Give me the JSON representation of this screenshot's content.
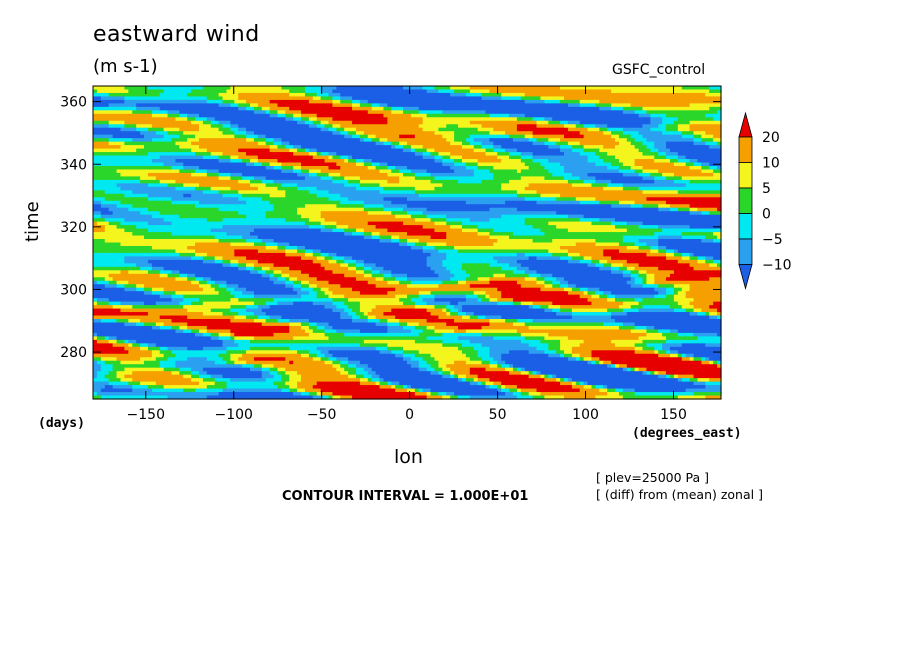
{
  "title": "eastward wind",
  "units": "(m s-1)",
  "source_label": "GSFC_control",
  "x_unit_note": "(days)",
  "x_unit": "(degrees_east)",
  "contour_interval": "CONTOUR INTERVAL = 1.000E+01",
  "notes": [
    "[ plev=25000 Pa ]",
    "[ (diff) from (mean) zonal ]"
  ],
  "chart_data": {
    "type": "heatmap",
    "title": "eastward wind",
    "subtitle": "(m s-1)",
    "xlabel": "lon",
    "ylabel": "time",
    "xlim": [
      -180,
      177
    ],
    "ylim": [
      265,
      365
    ],
    "x_ticks": [
      -150,
      -100,
      -50,
      0,
      50,
      100,
      150
    ],
    "y_ticks": [
      280,
      300,
      320,
      340,
      360
    ],
    "colorbar": {
      "levels": [
        -10,
        -5,
        0,
        5,
        10,
        20
      ],
      "level_labels": [
        "-10",
        "-5",
        "0",
        "5",
        "10",
        "20"
      ],
      "colors": [
        "#1a5fe6",
        "#2ba0f0",
        "#00e8f0",
        "#2ad62a",
        "#f5f51e",
        "#f5a000",
        "#e60000"
      ],
      "extend": "both"
    },
    "features": [
      {
        "description": "eastward-propagating positive band",
        "from": [
          -180,
          292
        ],
        "to": [
          100,
          304
        ],
        "peak": 20
      },
      {
        "description": "eastward-propagating positive band",
        "from": [
          -100,
          286
        ],
        "to": [
          177,
          305
        ],
        "peak": 20
      },
      {
        "description": "eastward-propagating positive band",
        "from": [
          -180,
          270
        ],
        "to": [
          177,
          300
        ],
        "peak": 10
      },
      {
        "description": "positive band",
        "from": [
          -180,
          346
        ],
        "to": [
          177,
          352
        ],
        "peak": 10
      }
    ],
    "grid": false
  }
}
